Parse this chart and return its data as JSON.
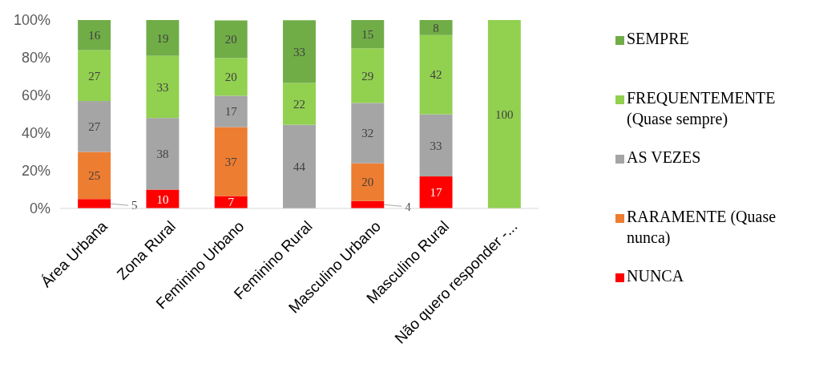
{
  "chart_data": {
    "type": "bar",
    "stacked": true,
    "categories": [
      "Área Urbana",
      "Zona Rural",
      "Feminino Urbano",
      "Feminino Rural",
      "Masculino Urbano",
      "Masculino Rural",
      "Não quero responder -..."
    ],
    "series": [
      {
        "name": "NUNCA",
        "color": "#ff0000",
        "values": [
          5,
          10,
          6.6,
          null,
          4,
          17,
          null
        ],
        "value_labels": [
          "5",
          "10",
          "7",
          null,
          "4",
          "17",
          null
        ]
      },
      {
        "name": "RARAMENTE (Quase nunca)",
        "color": "#ed7d31",
        "values": [
          25,
          null,
          36.6,
          null,
          20,
          null,
          null
        ],
        "value_labels": [
          "25",
          null,
          "37",
          null,
          "20",
          null,
          null
        ]
      },
      {
        "name": "AS VEZES",
        "color": "#a5a5a5",
        "values": [
          27,
          38,
          16.6,
          44.4,
          32,
          33,
          null
        ],
        "value_labels": [
          "27",
          "38",
          "17",
          "44",
          "32",
          "33",
          null
        ]
      },
      {
        "name": "FREQUENTEMENTE (Quase sempre)",
        "color": "#92d050",
        "values": [
          27,
          33,
          20,
          22.2,
          29,
          42,
          100
        ],
        "value_labels": [
          "27",
          "33",
          "20",
          "22",
          "29",
          "42",
          "100"
        ]
      },
      {
        "name": "SEMPRE",
        "color": "#70ad47",
        "values": [
          16,
          19,
          20,
          33.3,
          15,
          8,
          null
        ],
        "value_labels": [
          "16",
          "19",
          "20",
          "33",
          "15",
          "8",
          null
        ]
      }
    ],
    "ylim": [
      0,
      100
    ],
    "yticks": [
      {
        "value": 0,
        "label": "0%"
      },
      {
        "value": 20,
        "label": "20%"
      },
      {
        "value": 40,
        "label": "40%"
      },
      {
        "value": 60,
        "label": "60%"
      },
      {
        "value": 80,
        "label": "80%"
      },
      {
        "value": 100,
        "label": "100%"
      }
    ],
    "legend": "right"
  }
}
